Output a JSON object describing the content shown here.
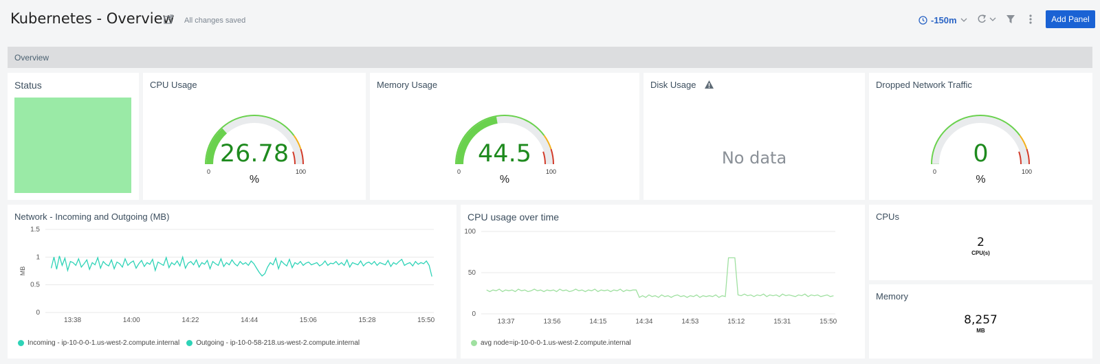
{
  "header": {
    "title": "Kubernetes - Overview",
    "saved_status": "All changes saved",
    "time_range": "-150m",
    "add_panel_label": "Add Panel"
  },
  "section": {
    "label": "Overview"
  },
  "status_panel": {
    "title": "Status",
    "color": "#9aeaa6"
  },
  "cpu_gauge": {
    "title": "CPU Usage",
    "value": "26.78",
    "value_num": 26.78,
    "unit": "%",
    "min": "0",
    "max": "100"
  },
  "mem_gauge": {
    "title": "Memory Usage",
    "value": "44.5",
    "value_num": 44.5,
    "unit": "%",
    "min": "0",
    "max": "100"
  },
  "disk_panel": {
    "title": "Disk Usage",
    "message": "No data"
  },
  "drop_gauge": {
    "title": "Dropped Network Traffic",
    "value": "0",
    "value_num": 0,
    "unit": "%",
    "min": "0",
    "max": "100"
  },
  "network_chart": {
    "title": "Network - Incoming and Outgoing (MB)",
    "legend": [
      {
        "label": "Incoming - ip-10-0-0-1.us-west-2.compute.internal",
        "color": "#2ed3b7"
      },
      {
        "label": "Outgoing - ip-10-0-58-218.us-west-2.compute.internal",
        "color": "#2ed3b7"
      }
    ]
  },
  "cpu_chart": {
    "title": "CPU usage over time",
    "legend": [
      {
        "label": "avg node=ip-10-0-0-1.us-west-2.compute.internal",
        "color": "#9fe0a0"
      }
    ]
  },
  "cpus_panel": {
    "title": "CPUs",
    "value": "2",
    "unit": "CPU(s)"
  },
  "memory_panel": {
    "title": "Memory",
    "value": "8,257",
    "unit": "MB"
  },
  "chart_data": [
    {
      "type": "line",
      "ylabel": "MB",
      "ylim": [
        0,
        1.5
      ],
      "yticks": [
        "0",
        "0.5",
        "1",
        "1.5"
      ],
      "xticks": [
        "13:38",
        "14:00",
        "14:22",
        "14:44",
        "15:06",
        "15:28",
        "15:50"
      ],
      "series": [
        {
          "values": [
            0.8,
            1.0,
            0.78,
            1.02,
            0.85,
            0.98,
            0.76,
            0.92,
            0.9,
            0.85,
            0.97,
            0.82,
            0.88,
            0.95,
            0.78,
            0.9,
            0.86,
            0.99,
            0.8,
            0.92,
            0.87,
            0.84,
            0.95,
            0.79,
            0.91,
            0.88,
            0.82,
            0.97,
            0.85,
            0.9,
            0.93,
            0.8,
            0.88,
            0.94,
            0.83,
            0.9,
            0.87,
            0.96,
            0.76,
            0.91,
            0.88,
            0.85,
            0.99,
            0.81,
            0.9,
            0.86,
            0.93,
            0.84,
            1.0,
            0.8,
            0.89,
            0.92,
            0.86,
            0.95,
            0.82,
            0.9,
            0.87,
            0.94,
            0.79,
            0.92,
            0.88,
            0.85,
            0.97,
            0.83,
            0.9,
            0.86,
            0.95,
            0.88,
            0.84,
            0.92,
            0.87,
            0.9,
            0.85,
            0.93,
            0.88,
            0.8,
            0.72,
            0.66,
            0.7,
            0.82,
            0.9,
            0.86,
            0.98,
            0.79,
            0.93,
            0.88,
            0.84,
            0.96,
            0.81,
            0.9,
            0.87,
            0.92,
            0.85,
            0.89,
            0.91,
            0.86,
            0.88,
            0.9,
            0.84,
            0.87,
            0.93,
            0.85,
            0.89,
            0.88,
            0.92,
            0.86,
            0.9,
            0.85,
            0.95,
            0.82,
            0.9,
            0.88,
            0.86,
            0.93,
            0.84,
            0.89,
            0.91,
            0.87,
            0.92,
            0.85,
            0.9,
            0.88,
            0.86,
            0.94,
            0.83,
            0.9,
            0.87,
            0.92,
            0.96,
            0.85,
            0.88,
            0.9,
            0.84,
            0.92,
            0.87,
            0.9,
            0.88,
            0.93,
            0.85,
            0.65
          ]
        }
      ]
    },
    {
      "type": "line",
      "ylim": [
        0,
        100
      ],
      "yticks": [
        "0",
        "50",
        "100"
      ],
      "xticks": [
        "13:37",
        "13:56",
        "14:15",
        "14:34",
        "14:53",
        "15:12",
        "15:31",
        "15:50"
      ],
      "series": [
        {
          "values": [
            29,
            27,
            29,
            28,
            30,
            27,
            29,
            28,
            29,
            27,
            30,
            28,
            29,
            27,
            28,
            30,
            28,
            29,
            27,
            29,
            28,
            29,
            27,
            30,
            28,
            29,
            27,
            28,
            30,
            28,
            29,
            27,
            29,
            28,
            30,
            27,
            29,
            28,
            29,
            27,
            29,
            28,
            30,
            27,
            29,
            28,
            29,
            29,
            20,
            22,
            20,
            23,
            21,
            22,
            20,
            23,
            21,
            22,
            20,
            22,
            23,
            21,
            22,
            20,
            22,
            21,
            23,
            20,
            22,
            21,
            22,
            21,
            23,
            20,
            22,
            21,
            68,
            68,
            68,
            23,
            22,
            24,
            22,
            23,
            21,
            23,
            22,
            24,
            21,
            23,
            22,
            23,
            21,
            24,
            22,
            23,
            22,
            21,
            23,
            22,
            24,
            21,
            23,
            22,
            23,
            21,
            22,
            23,
            21,
            22
          ]
        }
      ]
    }
  ]
}
